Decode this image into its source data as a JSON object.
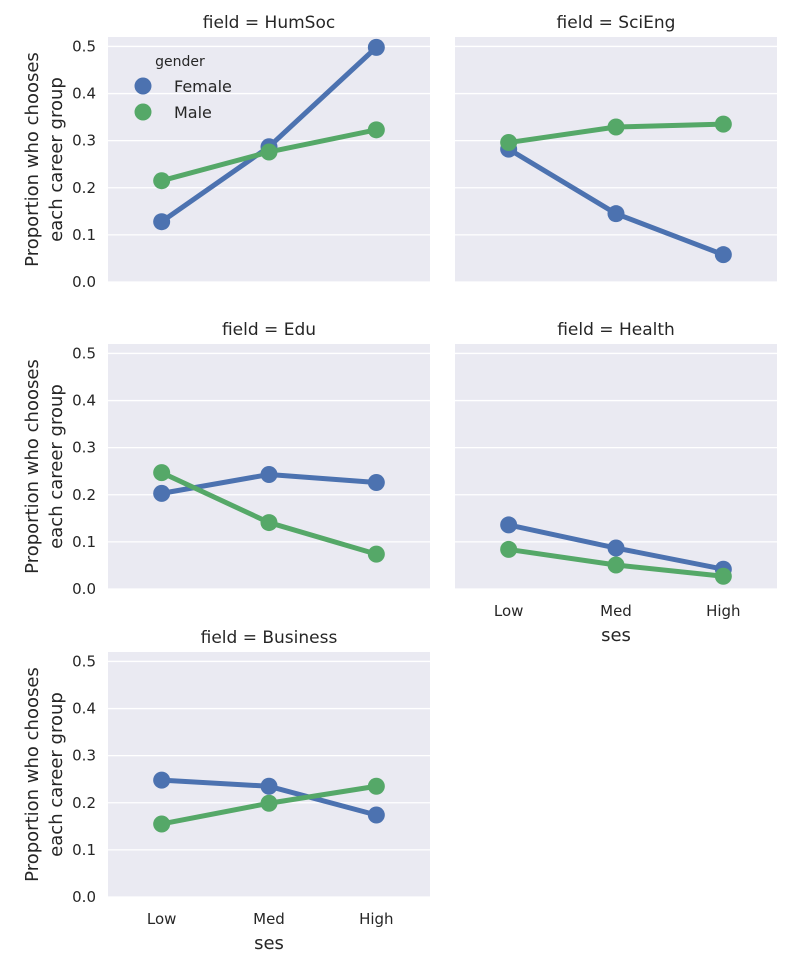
{
  "chart_data": {
    "type": "line",
    "x_categories": [
      "Low",
      "Med",
      "High"
    ],
    "xlabel": "ses",
    "ylabel": [
      "Proportion who chooses",
      "each career group"
    ],
    "ylim": [
      0,
      0.52
    ],
    "yticks": [
      "0.0",
      "0.1",
      "0.2",
      "0.3",
      "0.4",
      "0.5"
    ],
    "grid": true,
    "legend": {
      "title": "gender",
      "placement": "top-left of first panel",
      "entries": [
        {
          "name": "Female",
          "color": "#4c72b0"
        },
        {
          "name": "Male",
          "color": "#55a868"
        }
      ]
    },
    "panels": [
      {
        "title": "field = HumSoc",
        "series": [
          {
            "name": "Female",
            "values": [
              0.128,
              0.287,
              0.498
            ]
          },
          {
            "name": "Male",
            "values": [
              0.215,
              0.276,
              0.323
            ]
          }
        ]
      },
      {
        "title": "field = SciEng",
        "series": [
          {
            "name": "Female",
            "values": [
              0.282,
              0.145,
              0.058
            ]
          },
          {
            "name": "Male",
            "values": [
              0.296,
              0.329,
              0.335
            ]
          }
        ]
      },
      {
        "title": "field = Edu",
        "series": [
          {
            "name": "Female",
            "values": [
              0.203,
              0.243,
              0.226
            ]
          },
          {
            "name": "Male",
            "values": [
              0.247,
              0.141,
              0.074
            ]
          }
        ]
      },
      {
        "title": "field = Health",
        "series": [
          {
            "name": "Female",
            "values": [
              0.136,
              0.087,
              0.042
            ]
          },
          {
            "name": "Male",
            "values": [
              0.084,
              0.051,
              0.027
            ]
          }
        ]
      },
      {
        "title": "field = Business",
        "series": [
          {
            "name": "Female",
            "values": [
              0.248,
              0.235,
              0.174
            ]
          },
          {
            "name": "Male",
            "values": [
              0.155,
              0.199,
              0.235
            ]
          }
        ]
      }
    ]
  }
}
